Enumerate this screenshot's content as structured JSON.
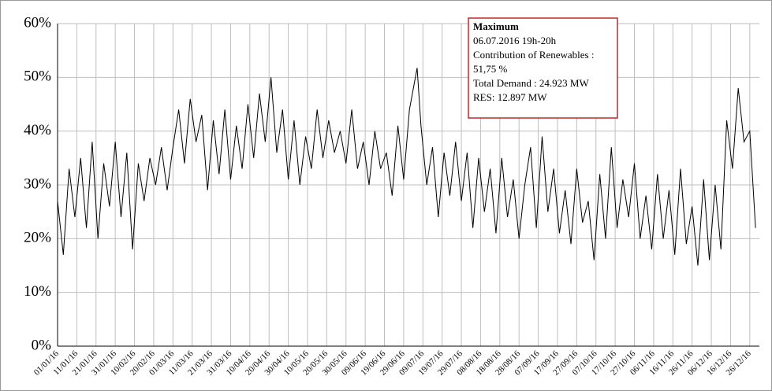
{
  "chart_data": {
    "type": "line",
    "x": [
      "01/01/16",
      "04/01/16",
      "07/01/16",
      "10/01/16",
      "13/01/16",
      "16/01/16",
      "19/01/16",
      "22/01/16",
      "25/01/16",
      "28/01/16",
      "31/01/16",
      "03/02/16",
      "06/02/16",
      "09/02/16",
      "12/02/16",
      "15/02/16",
      "18/02/16",
      "21/02/16",
      "24/02/16",
      "27/02/16",
      "01/03/16",
      "04/03/16",
      "07/03/16",
      "10/03/16",
      "13/03/16",
      "16/03/16",
      "19/03/16",
      "22/03/16",
      "25/03/16",
      "28/03/16",
      "31/03/16",
      "03/04/16",
      "06/04/16",
      "09/04/16",
      "12/04/16",
      "15/04/16",
      "18/04/16",
      "21/04/16",
      "24/04/16",
      "27/04/16",
      "30/04/16",
      "03/05/16",
      "06/05/16",
      "09/05/16",
      "12/05/16",
      "15/05/16",
      "18/05/16",
      "21/05/16",
      "24/05/16",
      "27/05/16",
      "30/05/16",
      "02/06/16",
      "05/06/16",
      "08/06/16",
      "11/06/16",
      "14/06/16",
      "17/06/16",
      "20/06/16",
      "23/06/16",
      "26/06/16",
      "29/06/16",
      "02/07/16",
      "06/07/16",
      "08/07/16",
      "11/07/16",
      "14/07/16",
      "17/07/16",
      "20/07/16",
      "23/07/16",
      "26/07/16",
      "29/07/16",
      "01/08/16",
      "04/08/16",
      "07/08/16",
      "10/08/16",
      "13/08/16",
      "16/08/16",
      "19/08/16",
      "22/08/16",
      "25/08/16",
      "28/08/16",
      "31/08/16",
      "03/09/16",
      "06/09/16",
      "09/09/16",
      "12/09/16",
      "15/09/16",
      "18/09/16",
      "21/09/16",
      "24/09/16",
      "27/09/16",
      "30/09/16",
      "03/10/16",
      "06/10/16",
      "09/10/16",
      "12/10/16",
      "15/10/16",
      "18/10/16",
      "21/10/16",
      "24/10/16",
      "27/10/16",
      "30/10/16",
      "02/11/16",
      "05/11/16",
      "08/11/16",
      "11/11/16",
      "14/11/16",
      "17/11/16",
      "20/11/16",
      "23/11/16",
      "26/11/16",
      "29/11/16",
      "02/12/16",
      "05/12/16",
      "08/12/16",
      "11/12/16",
      "14/12/16",
      "17/12/16",
      "20/12/16",
      "23/12/16",
      "26/12/16",
      "29/12/16"
    ],
    "series": [
      {
        "color": "#000000",
        "values": [
          27,
          17,
          33,
          24,
          35,
          22,
          38,
          20,
          34,
          26,
          38,
          24,
          36,
          18,
          34,
          27,
          35,
          30,
          37,
          29,
          37,
          44,
          34,
          46,
          38,
          43,
          29,
          42,
          32,
          44,
          31,
          41,
          33,
          45,
          35,
          47,
          38,
          50,
          36,
          44,
          31,
          42,
          30,
          39,
          33,
          44,
          35,
          42,
          36,
          40,
          34,
          44,
          33,
          38,
          30,
          40,
          33,
          36,
          28,
          41,
          31,
          44,
          51.75,
          41,
          30,
          37,
          24,
          36,
          28,
          38,
          27,
          36,
          22,
          35,
          25,
          33,
          21,
          35,
          24,
          31,
          20,
          30,
          37,
          22,
          39,
          25,
          33,
          21,
          29,
          19,
          33,
          23,
          27,
          16,
          32,
          20,
          37,
          22,
          31,
          24,
          34,
          20,
          28,
          18,
          32,
          20,
          29,
          17,
          33,
          19,
          26,
          15,
          31,
          16,
          30,
          18,
          42,
          33,
          48,
          38,
          40,
          22
        ]
      }
    ],
    "xlim": [
      "01/01/16",
      "31/12/16"
    ],
    "xticks": [
      "01/01/16",
      "11/01/16",
      "21/01/16",
      "31/01/16",
      "10/02/16",
      "20/02/16",
      "01/03/16",
      "11/03/16",
      "21/03/16",
      "31/03/16",
      "10/04/16",
      "20/04/16",
      "30/04/16",
      "10/05/16",
      "20/05/16",
      "30/05/16",
      "09/06/16",
      "19/06/16",
      "29/06/16",
      "09/07/16",
      "19/07/16",
      "29/07/16",
      "08/08/16",
      "18/08/16",
      "28/08/16",
      "07/09/16",
      "17/09/16",
      "27/09/16",
      "07/10/16",
      "17/10/16",
      "27/10/16",
      "06/11/16",
      "16/11/16",
      "26/11/16",
      "06/12/16",
      "16/12/16",
      "26/12/16"
    ],
    "ylim": [
      0,
      60
    ],
    "yticks": [
      {
        "value": 0,
        "label": "0%"
      },
      {
        "value": 10,
        "label": "10%"
      },
      {
        "value": 20,
        "label": "20%"
      },
      {
        "value": 30,
        "label": "30%"
      },
      {
        "value": 40,
        "label": "40%"
      },
      {
        "value": 50,
        "label": "50%"
      },
      {
        "value": 60,
        "label": "60%"
      }
    ],
    "grid": true,
    "annotation": {
      "title": "Maximum",
      "lines": [
        "06.07.2016 19h-20h",
        "Contribution of Renewables :",
        "51,75 %",
        "Total Demand : 24.923 MW",
        "RES: 12.897 MW"
      ]
    }
  }
}
